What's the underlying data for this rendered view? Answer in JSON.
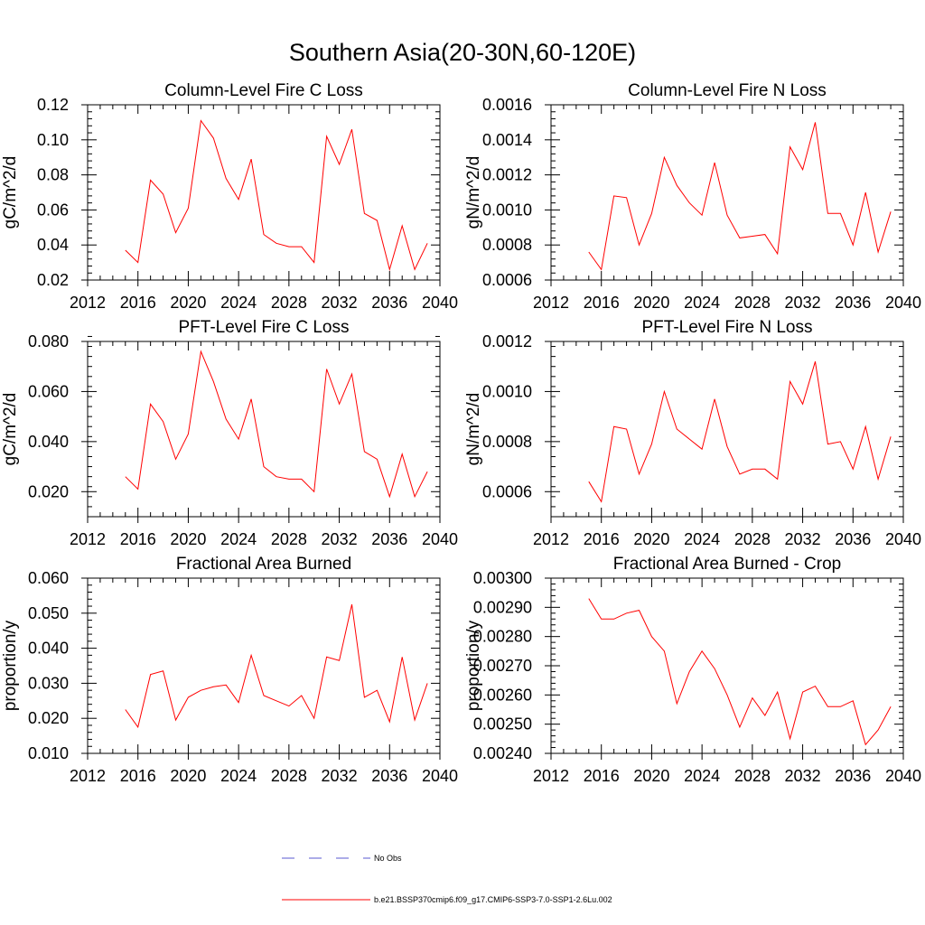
{
  "figure": {
    "title": "Southern Asia(20-30N,60-120E)",
    "line_color": "#ff0000",
    "obs_color": "#5a5ad0"
  },
  "legend": {
    "obs_label": "No Obs",
    "model_label": "b.e21.BSSP370cmip6.f09_g17.CMIP6-SSP3-7.0-SSP1-2.6Lu.002"
  },
  "chart_data": [
    {
      "type": "line",
      "title": "Column-Level Fire C Loss",
      "ylabel": "gC/m^2/d",
      "xlim": [
        2012,
        2040
      ],
      "ylim": [
        0.02,
        0.12
      ],
      "xticks": [
        2012,
        2016,
        2020,
        2024,
        2028,
        2032,
        2036,
        2040
      ],
      "xtick_labels": [
        "2012",
        "2016",
        "2020",
        "2024",
        "2028",
        "2032",
        "2036",
        "2040"
      ],
      "yticks": [
        0.02,
        0.04,
        0.06,
        0.08,
        0.1,
        0.12
      ],
      "ytick_labels": [
        "0.02",
        "0.04",
        "0.06",
        "0.08",
        "0.10",
        "0.12"
      ],
      "x": [
        2015,
        2016,
        2017,
        2018,
        2019,
        2020,
        2021,
        2022,
        2023,
        2024,
        2025,
        2026,
        2027,
        2028,
        2029,
        2030,
        2031,
        2032,
        2033,
        2034,
        2035,
        2036,
        2037,
        2038,
        2039
      ],
      "values": [
        0.037,
        0.03,
        0.077,
        0.069,
        0.047,
        0.061,
        0.111,
        0.101,
        0.078,
        0.066,
        0.089,
        0.046,
        0.041,
        0.039,
        0.039,
        0.03,
        0.102,
        0.086,
        0.106,
        0.058,
        0.054,
        0.026,
        0.051,
        0.026,
        0.041
      ]
    },
    {
      "type": "line",
      "title": "Column-Level Fire N Loss",
      "ylabel": "gN/m^2/d",
      "xlim": [
        2012,
        2040
      ],
      "ylim": [
        0.0006,
        0.0016
      ],
      "xticks": [
        2012,
        2016,
        2020,
        2024,
        2028,
        2032,
        2036,
        2040
      ],
      "xtick_labels": [
        "2012",
        "2016",
        "2020",
        "2024",
        "2028",
        "2032",
        "2036",
        "2040"
      ],
      "yticks": [
        0.0006,
        0.0008,
        0.001,
        0.0012,
        0.0014,
        0.0016
      ],
      "ytick_labels": [
        "0.0006",
        "0.0008",
        "0.0010",
        "0.0012",
        "0.0014",
        "0.0016"
      ],
      "x": [
        2015,
        2016,
        2017,
        2018,
        2019,
        2020,
        2021,
        2022,
        2023,
        2024,
        2025,
        2026,
        2027,
        2028,
        2029,
        2030,
        2031,
        2032,
        2033,
        2034,
        2035,
        2036,
        2037,
        2038,
        2039
      ],
      "values": [
        0.00076,
        0.00066,
        0.00108,
        0.00107,
        0.0008,
        0.00098,
        0.0013,
        0.00114,
        0.00104,
        0.00097,
        0.00127,
        0.00097,
        0.00084,
        0.00085,
        0.00086,
        0.00075,
        0.00136,
        0.00123,
        0.0015,
        0.00098,
        0.00098,
        0.0008,
        0.0011,
        0.00076,
        0.00099
      ]
    },
    {
      "type": "line",
      "title": "PFT-Level Fire C Loss",
      "ylabel": "gC/m^2/d",
      "xlim": [
        2012,
        2040
      ],
      "ylim": [
        0.01,
        0.08
      ],
      "xticks": [
        2012,
        2016,
        2020,
        2024,
        2028,
        2032,
        2036,
        2040
      ],
      "xtick_labels": [
        "2012",
        "2016",
        "2020",
        "2024",
        "2028",
        "2032",
        "2036",
        "2040"
      ],
      "yticks": [
        0.02,
        0.04,
        0.06,
        0.08
      ],
      "ytick_labels": [
        "0.020",
        "0.040",
        "0.060",
        "0.080"
      ],
      "x": [
        2015,
        2016,
        2017,
        2018,
        2019,
        2020,
        2021,
        2022,
        2023,
        2024,
        2025,
        2026,
        2027,
        2028,
        2029,
        2030,
        2031,
        2032,
        2033,
        2034,
        2035,
        2036,
        2037,
        2038,
        2039
      ],
      "values": [
        0.026,
        0.021,
        0.055,
        0.048,
        0.033,
        0.043,
        0.076,
        0.064,
        0.049,
        0.041,
        0.057,
        0.03,
        0.026,
        0.025,
        0.025,
        0.02,
        0.069,
        0.055,
        0.067,
        0.036,
        0.033,
        0.018,
        0.035,
        0.018,
        0.028
      ]
    },
    {
      "type": "line",
      "title": "PFT-Level Fire N Loss",
      "ylabel": "gN/m^2/d",
      "xlim": [
        2012,
        2040
      ],
      "ylim": [
        0.0005,
        0.0012
      ],
      "xticks": [
        2012,
        2016,
        2020,
        2024,
        2028,
        2032,
        2036,
        2040
      ],
      "xtick_labels": [
        "2012",
        "2016",
        "2020",
        "2024",
        "2028",
        "2032",
        "2036",
        "2040"
      ],
      "yticks": [
        0.0006,
        0.0008,
        0.001,
        0.0012
      ],
      "ytick_labels": [
        "0.0006",
        "0.0008",
        "0.0010",
        "0.0012"
      ],
      "x": [
        2015,
        2016,
        2017,
        2018,
        2019,
        2020,
        2021,
        2022,
        2023,
        2024,
        2025,
        2026,
        2027,
        2028,
        2029,
        2030,
        2031,
        2032,
        2033,
        2034,
        2035,
        2036,
        2037,
        2038,
        2039
      ],
      "values": [
        0.00064,
        0.00056,
        0.00086,
        0.00085,
        0.00067,
        0.00079,
        0.001,
        0.00085,
        0.00081,
        0.00077,
        0.00097,
        0.00078,
        0.00067,
        0.00069,
        0.00069,
        0.00065,
        0.00104,
        0.00095,
        0.00112,
        0.00079,
        0.0008,
        0.00069,
        0.00086,
        0.00065,
        0.00082
      ]
    },
    {
      "type": "line",
      "title": "Fractional Area Burned",
      "ylabel": "proportion/y",
      "xlim": [
        2012,
        2040
      ],
      "ylim": [
        0.01,
        0.06
      ],
      "xticks": [
        2012,
        2016,
        2020,
        2024,
        2028,
        2032,
        2036,
        2040
      ],
      "xtick_labels": [
        "2012",
        "2016",
        "2020",
        "2024",
        "2028",
        "2032",
        "2036",
        "2040"
      ],
      "yticks": [
        0.01,
        0.02,
        0.03,
        0.04,
        0.05,
        0.06
      ],
      "ytick_labels": [
        "0.010",
        "0.020",
        "0.030",
        "0.040",
        "0.050",
        "0.060"
      ],
      "x": [
        2015,
        2016,
        2017,
        2018,
        2019,
        2020,
        2021,
        2022,
        2023,
        2024,
        2025,
        2026,
        2027,
        2028,
        2029,
        2030,
        2031,
        2032,
        2033,
        2034,
        2035,
        2036,
        2037,
        2038,
        2039
      ],
      "values": [
        0.0225,
        0.0175,
        0.0325,
        0.0335,
        0.0195,
        0.026,
        0.028,
        0.029,
        0.0295,
        0.0245,
        0.038,
        0.0265,
        0.025,
        0.0235,
        0.0265,
        0.02,
        0.0375,
        0.0365,
        0.0525,
        0.026,
        0.028,
        0.019,
        0.0375,
        0.0195,
        0.03
      ]
    },
    {
      "type": "line",
      "title": "Fractional Area Burned - Crop",
      "ylabel": "proportion/y",
      "xlim": [
        2012,
        2040
      ],
      "ylim": [
        0.0024,
        0.003
      ],
      "xticks": [
        2012,
        2016,
        2020,
        2024,
        2028,
        2032,
        2036,
        2040
      ],
      "xtick_labels": [
        "2012",
        "2016",
        "2020",
        "2024",
        "2028",
        "2032",
        "2036",
        "2040"
      ],
      "yticks": [
        0.0024,
        0.0025,
        0.0026,
        0.0027,
        0.0028,
        0.0029,
        0.003
      ],
      "ytick_labels": [
        "0.00240",
        "0.00250",
        "0.00260",
        "0.00270",
        "0.00280",
        "0.00290",
        "0.00300"
      ],
      "x": [
        2015,
        2016,
        2017,
        2018,
        2019,
        2020,
        2021,
        2022,
        2023,
        2024,
        2025,
        2026,
        2027,
        2028,
        2029,
        2030,
        2031,
        2032,
        2033,
        2034,
        2035,
        2036,
        2037,
        2038,
        2039
      ],
      "values": [
        0.00293,
        0.00286,
        0.00286,
        0.00288,
        0.00289,
        0.0028,
        0.00275,
        0.00257,
        0.00268,
        0.00275,
        0.00269,
        0.0026,
        0.00249,
        0.00259,
        0.00253,
        0.00261,
        0.00245,
        0.00261,
        0.00263,
        0.00256,
        0.00256,
        0.00258,
        0.00243,
        0.00248,
        0.00256
      ]
    }
  ]
}
